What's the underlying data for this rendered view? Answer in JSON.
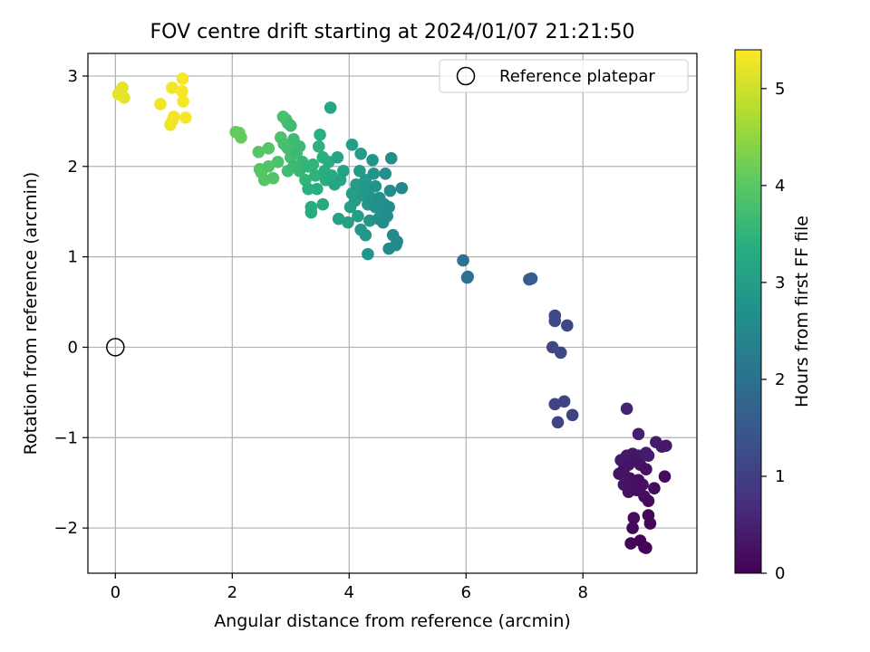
{
  "chart_data": {
    "type": "scatter",
    "title": "FOV centre drift starting at 2024/01/07 21:21:50",
    "xlabel": "Angular distance from reference (arcmin)",
    "ylabel": "Rotation from reference (arcmin)",
    "xlim": [
      -0.47,
      9.95
    ],
    "ylim": [
      -2.5,
      3.25
    ],
    "xticks": [
      0,
      2,
      4,
      6,
      8
    ],
    "xtick_labels": [
      "0",
      "2",
      "4",
      "6",
      "8"
    ],
    "yticks": [
      -2,
      -1,
      0,
      1,
      2,
      3
    ],
    "ytick_labels": [
      "−2",
      "−1",
      "0",
      "1",
      "2",
      "3"
    ],
    "grid": true,
    "legend": {
      "placement": "top-right",
      "entries": [
        "Reference platepar"
      ]
    },
    "colorbar": {
      "label": "Hours from first FF file",
      "colormap": "viridis",
      "range": [
        0,
        5.4
      ],
      "ticks": [
        0,
        1,
        2,
        3,
        4,
        5
      ],
      "tick_labels": [
        "0",
        "1",
        "2",
        "3",
        "4",
        "5"
      ]
    },
    "reference_point": {
      "x": 0,
      "y": 0,
      "name": "Reference platepar"
    },
    "points": [
      [
        0.05,
        2.8,
        5.2
      ],
      [
        0.12,
        2.87,
        5.2
      ],
      [
        0.15,
        2.76,
        5.2
      ],
      [
        0.77,
        2.69,
        5.3
      ],
      [
        0.97,
        2.87,
        5.3
      ],
      [
        1.0,
        2.55,
        5.3
      ],
      [
        0.94,
        2.46,
        5.3
      ],
      [
        0.97,
        2.5,
        5.3
      ],
      [
        1.15,
        2.97,
        5.35
      ],
      [
        1.14,
        2.83,
        5.35
      ],
      [
        1.16,
        2.72,
        5.35
      ],
      [
        1.2,
        2.54,
        5.35
      ],
      [
        2.06,
        2.38,
        4.1
      ],
      [
        2.12,
        2.37,
        4.1
      ],
      [
        2.15,
        2.32,
        4.1
      ],
      [
        2.45,
        2.16,
        3.95
      ],
      [
        2.62,
        2.2,
        3.95
      ],
      [
        2.47,
        1.97,
        3.95
      ],
      [
        2.5,
        1.93,
        3.95
      ],
      [
        2.55,
        1.85,
        3.95
      ],
      [
        2.62,
        2.0,
        3.9
      ],
      [
        2.7,
        1.87,
        3.9
      ],
      [
        2.78,
        2.05,
        3.85
      ],
      [
        2.83,
        2.32,
        3.85
      ],
      [
        2.87,
        2.55,
        3.8
      ],
      [
        2.92,
        2.52,
        3.8
      ],
      [
        2.95,
        2.48,
        3.75
      ],
      [
        3.0,
        2.45,
        3.7
      ],
      [
        2.88,
        2.25,
        3.8
      ],
      [
        2.95,
        2.2,
        3.75
      ],
      [
        3.0,
        2.1,
        3.75
      ],
      [
        3.05,
        2.3,
        3.7
      ],
      [
        3.1,
        2.15,
        3.65
      ],
      [
        3.15,
        2.22,
        3.65
      ],
      [
        3.2,
        2.05,
        3.6
      ],
      [
        2.95,
        1.95,
        3.7
      ],
      [
        3.05,
        2.0,
        3.65
      ],
      [
        3.15,
        1.95,
        3.6
      ],
      [
        3.25,
        1.85,
        3.55
      ],
      [
        3.3,
        2.0,
        3.5
      ],
      [
        3.38,
        2.02,
        3.5
      ],
      [
        3.42,
        1.9,
        3.45
      ],
      [
        3.48,
        2.22,
        3.45
      ],
      [
        3.5,
        2.35,
        3.4
      ],
      [
        3.55,
        2.1,
        3.4
      ],
      [
        3.58,
        1.95,
        3.35
      ],
      [
        3.6,
        1.85,
        3.35
      ],
      [
        3.65,
        2.05,
        3.3
      ],
      [
        3.7,
        1.9,
        3.3
      ],
      [
        3.45,
        1.75,
        3.35
      ],
      [
        3.3,
        1.75,
        3.4
      ],
      [
        3.35,
        1.55,
        3.3
      ],
      [
        3.35,
        1.49,
        3.3
      ],
      [
        3.55,
        1.58,
        3.25
      ],
      [
        3.68,
        2.65,
        3.2
      ],
      [
        3.75,
        1.8,
        3.2
      ],
      [
        3.8,
        2.1,
        3.15
      ],
      [
        3.85,
        1.85,
        3.15
      ],
      [
        3.9,
        1.95,
        3.1
      ],
      [
        3.82,
        1.42,
        3.1
      ],
      [
        3.98,
        1.38,
        3.05
      ],
      [
        4.02,
        1.55,
        3.05
      ],
      [
        4.05,
        1.7,
        3.0
      ],
      [
        4.05,
        2.24,
        3.0
      ],
      [
        4.1,
        1.62,
        3.0
      ],
      [
        4.12,
        1.8,
        2.95
      ],
      [
        4.18,
        1.95,
        2.95
      ],
      [
        4.2,
        2.14,
        2.95
      ],
      [
        4.22,
        1.68,
        2.9
      ],
      [
        4.25,
        1.72,
        2.9
      ],
      [
        4.28,
        1.85,
        2.9
      ],
      [
        4.3,
        1.75,
        2.85
      ],
      [
        4.32,
        1.58,
        2.85
      ],
      [
        4.35,
        1.4,
        2.85
      ],
      [
        4.38,
        1.65,
        2.8
      ],
      [
        4.4,
        2.07,
        2.8
      ],
      [
        4.42,
        1.92,
        2.8
      ],
      [
        4.45,
        1.78,
        2.75
      ],
      [
        4.45,
        1.55,
        2.75
      ],
      [
        4.48,
        1.6,
        2.75
      ],
      [
        4.5,
        1.42,
        2.7
      ],
      [
        4.52,
        1.65,
        2.7
      ],
      [
        4.55,
        1.5,
        2.7
      ],
      [
        4.58,
        1.38,
        2.65
      ],
      [
        4.6,
        1.58,
        2.65
      ],
      [
        4.62,
        1.92,
        2.65
      ],
      [
        4.65,
        1.45,
        2.6
      ],
      [
        4.68,
        1.55,
        2.6
      ],
      [
        4.7,
        1.73,
        2.6
      ],
      [
        4.72,
        2.09,
        2.6
      ],
      [
        4.75,
        1.24,
        2.55
      ],
      [
        4.8,
        1.13,
        2.55
      ],
      [
        4.82,
        1.17,
        2.55
      ],
      [
        4.68,
        1.09,
        2.55
      ],
      [
        4.9,
        1.76,
        2.5
      ],
      [
        4.2,
        1.3,
        2.9
      ],
      [
        4.28,
        1.24,
        2.85
      ],
      [
        4.32,
        1.03,
        2.8
      ],
      [
        4.15,
        1.45,
        2.95
      ],
      [
        5.95,
        0.96,
        2.05
      ],
      [
        6.02,
        0.77,
        2.0
      ],
      [
        6.03,
        0.78,
        2.0
      ],
      [
        7.08,
        0.75,
        1.6
      ],
      [
        7.12,
        0.76,
        1.6
      ],
      [
        7.52,
        0.35,
        1.2
      ],
      [
        7.52,
        0.29,
        1.2
      ],
      [
        7.73,
        0.24,
        1.15
      ],
      [
        7.48,
        0.0,
        1.15
      ],
      [
        7.62,
        -0.06,
        1.15
      ],
      [
        7.52,
        -0.63,
        1.1
      ],
      [
        7.68,
        -0.6,
        1.1
      ],
      [
        7.57,
        -0.83,
        1.1
      ],
      [
        7.82,
        -0.75,
        1.05
      ],
      [
        8.75,
        -0.68,
        0.5
      ],
      [
        8.95,
        -0.96,
        0.45
      ],
      [
        9.25,
        -1.05,
        0.4
      ],
      [
        9.35,
        -1.1,
        0.4
      ],
      [
        9.42,
        -1.09,
        0.35
      ],
      [
        9.12,
        -1.2,
        0.4
      ],
      [
        9.08,
        -1.17,
        0.4
      ],
      [
        8.95,
        -1.2,
        0.4
      ],
      [
        8.65,
        -1.25,
        0.35
      ],
      [
        8.75,
        -1.2,
        0.35
      ],
      [
        8.85,
        -1.18,
        0.35
      ],
      [
        8.7,
        -1.35,
        0.3
      ],
      [
        8.78,
        -1.3,
        0.3
      ],
      [
        8.88,
        -1.25,
        0.3
      ],
      [
        8.98,
        -1.3,
        0.3
      ],
      [
        9.08,
        -1.35,
        0.25
      ],
      [
        8.62,
        -1.4,
        0.3
      ],
      [
        8.7,
        -1.52,
        0.3
      ],
      [
        8.8,
        -1.45,
        0.25
      ],
      [
        8.85,
        -1.55,
        0.25
      ],
      [
        8.95,
        -1.47,
        0.2
      ],
      [
        9.02,
        -1.52,
        0.2
      ],
      [
        9.05,
        -1.65,
        0.2
      ],
      [
        8.78,
        -1.6,
        0.25
      ],
      [
        8.92,
        -1.58,
        0.2
      ],
      [
        9.12,
        -1.7,
        0.15
      ],
      [
        9.22,
        -1.56,
        0.15
      ],
      [
        9.4,
        -1.43,
        0.15
      ],
      [
        8.87,
        -1.89,
        0.15
      ],
      [
        9.12,
        -1.86,
        0.1
      ],
      [
        9.15,
        -1.95,
        0.1
      ],
      [
        8.85,
        -2.0,
        0.1
      ],
      [
        8.82,
        -2.17,
        0.05
      ],
      [
        8.98,
        -2.14,
        0.05
      ],
      [
        9.05,
        -2.21,
        0.05
      ],
      [
        9.08,
        -2.22,
        0.05
      ]
    ]
  }
}
